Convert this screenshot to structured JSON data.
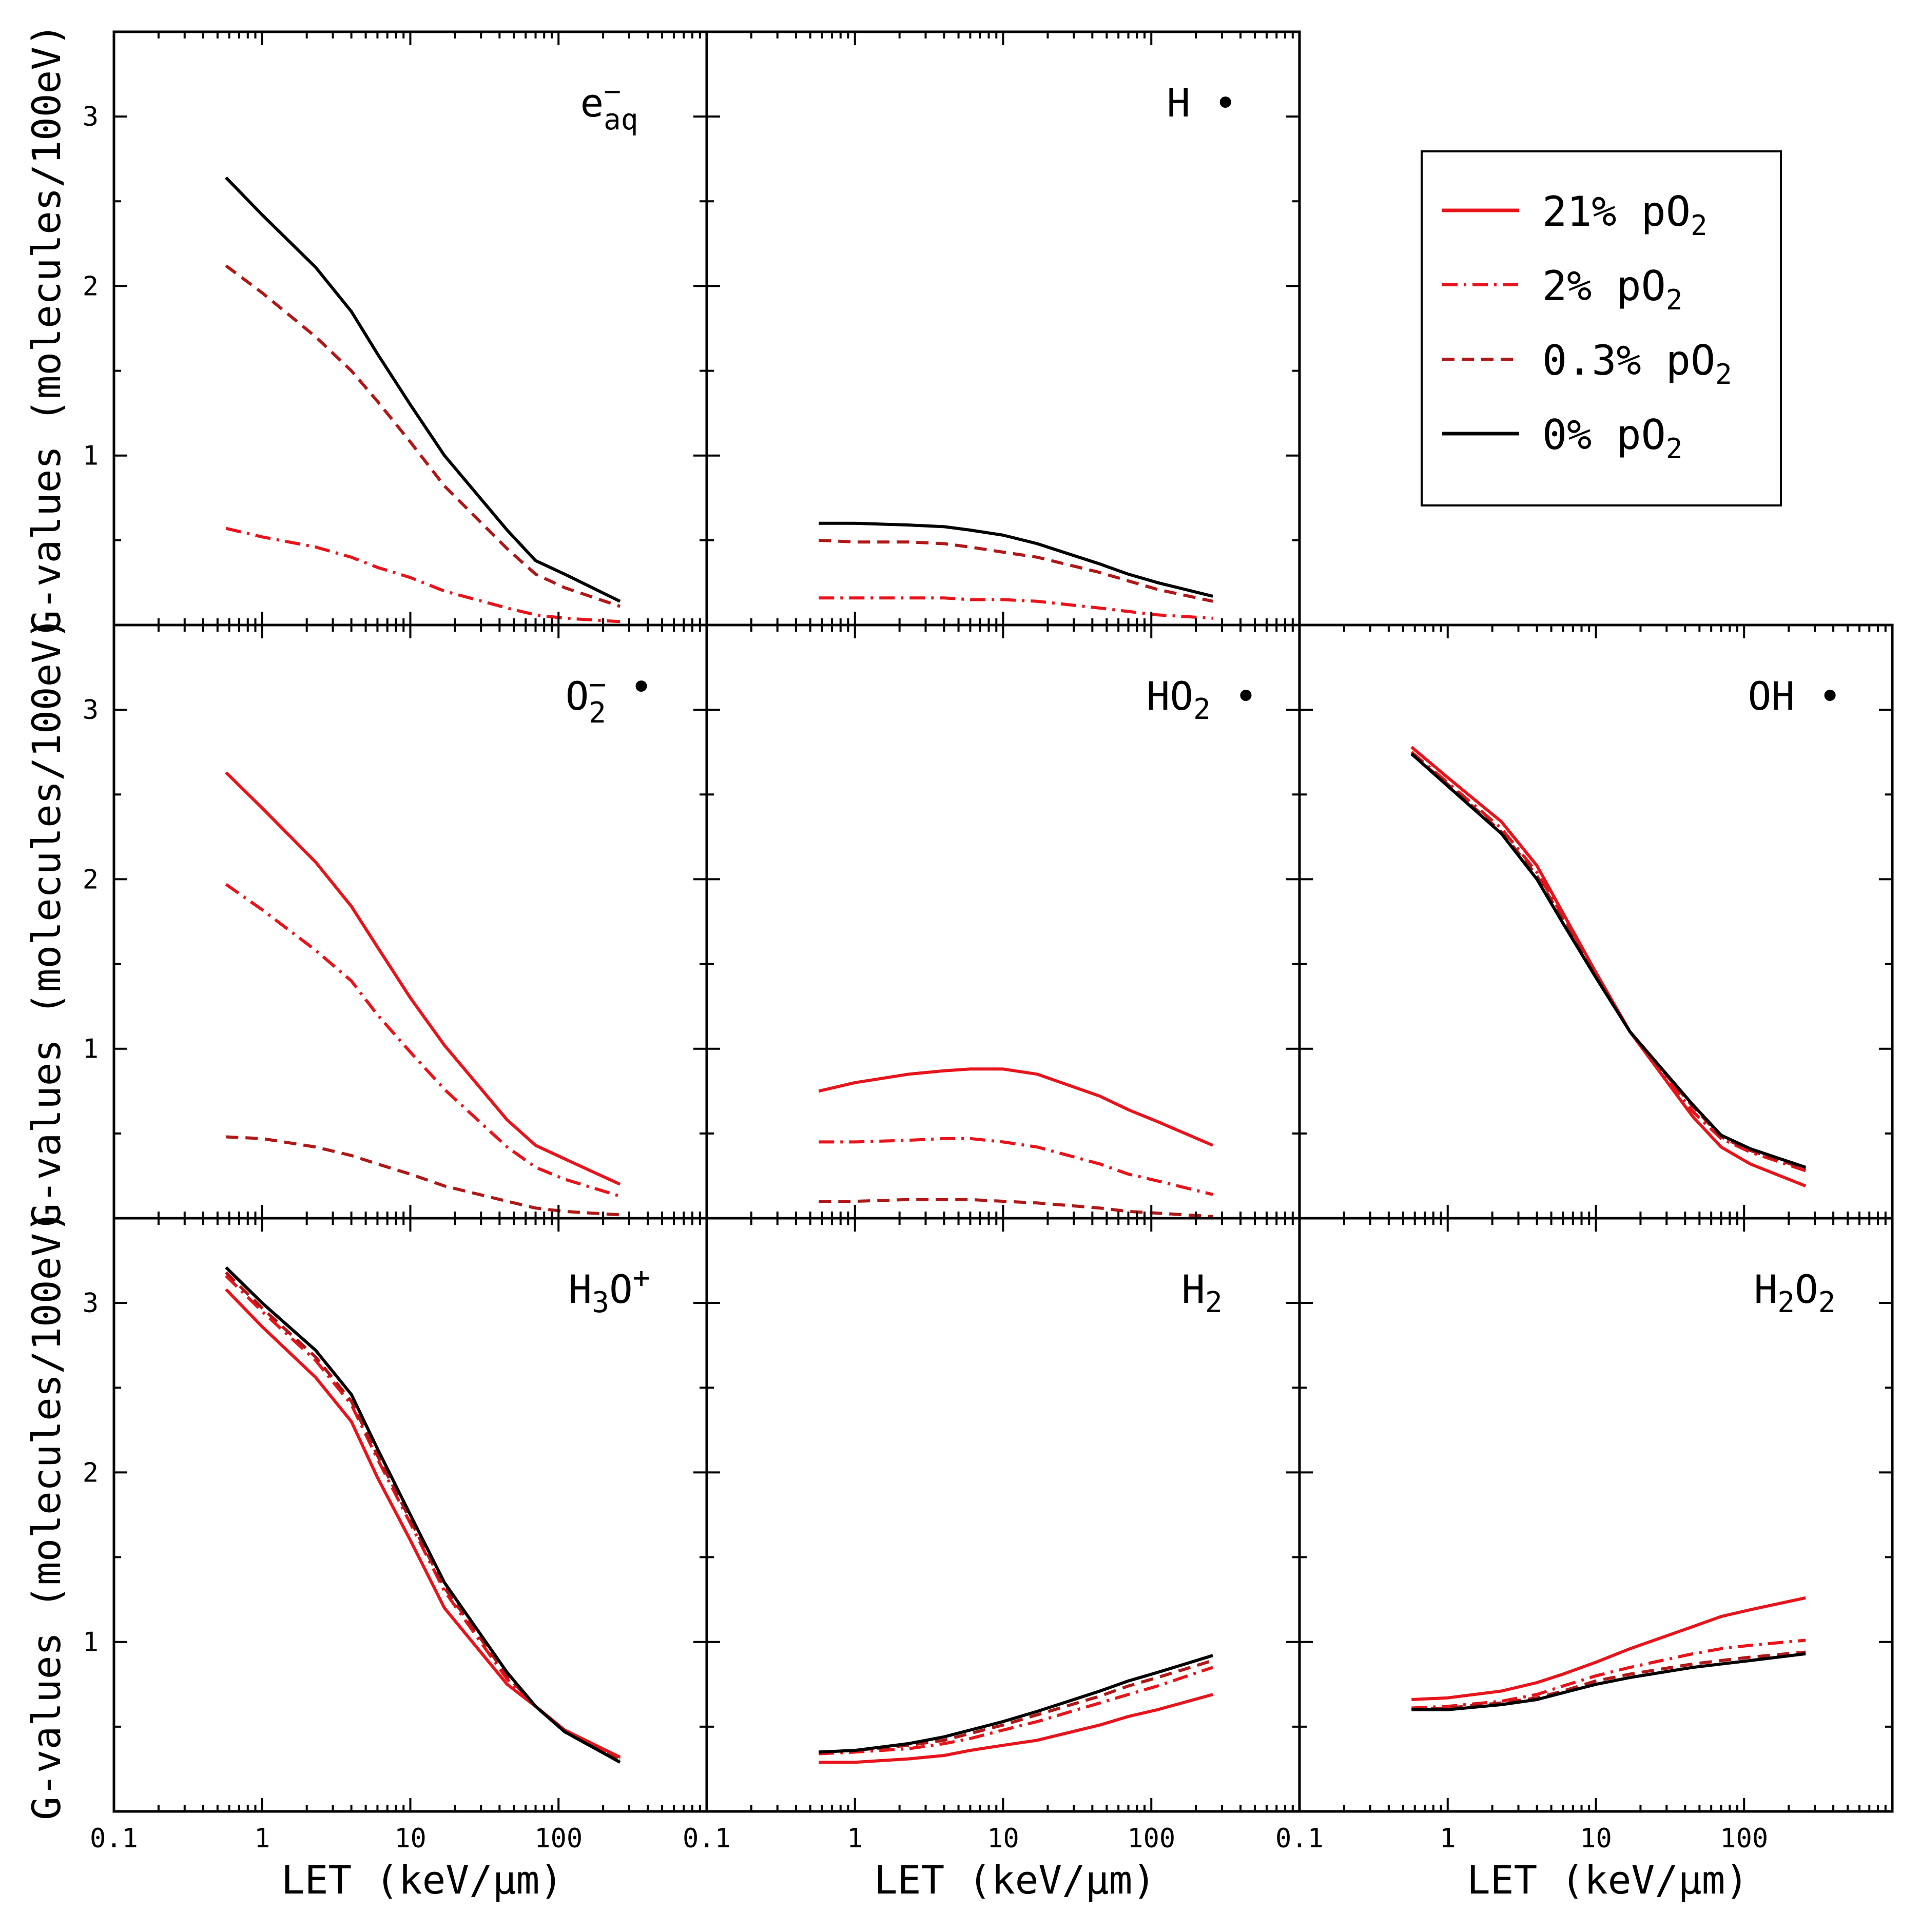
{
  "figure": {
    "x_axis_label": "LET (keV/µm)",
    "y_axis_label": "G-values (molecules/100eV)",
    "x_scale": "log",
    "xlim": [
      0.1,
      1000
    ],
    "ylim": [
      0,
      3.5
    ],
    "x_tick_labels": [
      "0.1",
      "1",
      "10",
      "100"
    ],
    "y_tick_labels": [
      "1",
      "2",
      "3"
    ]
  },
  "legend": {
    "placement": "top-right",
    "entries": [
      {
        "label": "21% pO",
        "subscript": "2",
        "color": "#e8141c",
        "dash": "solid"
      },
      {
        "label": "2% pO",
        "subscript": "2",
        "color": "#e8141c",
        "dash": "dashdot"
      },
      {
        "label": "0.3% pO",
        "subscript": "2",
        "color": "#b01818",
        "dash": "dashed"
      },
      {
        "label": "0% pO",
        "subscript": "2",
        "color": "#000000",
        "dash": "solid"
      }
    ]
  },
  "chart_data": [
    {
      "type": "line",
      "panel": "e-aq",
      "species": {
        "base": "e",
        "sup": "−",
        "sub": "aq"
      },
      "xlabel": "",
      "ylabel": "G-values (molecules/100eV)",
      "ylim": [
        0,
        3.5
      ],
      "series": [
        {
          "name": "0% pO2",
          "x": [
            0.57,
            1,
            2.3,
            4,
            6,
            10,
            17,
            45,
            70,
            110,
            260
          ],
          "y": [
            2.64,
            2.42,
            2.11,
            1.85,
            1.6,
            1.3,
            1.0,
            0.56,
            0.38,
            0.3,
            0.14
          ]
        },
        {
          "name": "0.3% pO2",
          "x": [
            0.57,
            1,
            2.3,
            4,
            6,
            10,
            17,
            45,
            70,
            110,
            260
          ],
          "y": [
            2.12,
            1.96,
            1.7,
            1.5,
            1.32,
            1.08,
            0.82,
            0.45,
            0.3,
            0.22,
            0.11
          ]
        },
        {
          "name": "2% pO2",
          "x": [
            0.57,
            1,
            2.3,
            4,
            6,
            10,
            17,
            45,
            70,
            110,
            260
          ],
          "y": [
            0.57,
            0.52,
            0.46,
            0.4,
            0.34,
            0.28,
            0.2,
            0.1,
            0.06,
            0.04,
            0.02
          ]
        }
      ]
    },
    {
      "type": "line",
      "panel": "H",
      "species": {
        "base": "H",
        "sup": "",
        "sub": "",
        "dot": "•"
      },
      "xlabel": "",
      "ylabel": "",
      "ylim": [
        0,
        3.5
      ],
      "series": [
        {
          "name": "0% pO2",
          "x": [
            0.57,
            1,
            2.3,
            4,
            6,
            10,
            17,
            45,
            70,
            110,
            260
          ],
          "y": [
            0.6,
            0.6,
            0.59,
            0.58,
            0.56,
            0.53,
            0.48,
            0.36,
            0.3,
            0.25,
            0.17
          ]
        },
        {
          "name": "0.3% pO2",
          "x": [
            0.57,
            1,
            2.3,
            4,
            6,
            10,
            17,
            45,
            70,
            110,
            260
          ],
          "y": [
            0.5,
            0.49,
            0.49,
            0.48,
            0.46,
            0.43,
            0.4,
            0.31,
            0.26,
            0.21,
            0.14
          ]
        },
        {
          "name": "2% pO2",
          "x": [
            0.57,
            1,
            2.3,
            4,
            6,
            10,
            17,
            45,
            70,
            110,
            260
          ],
          "y": [
            0.16,
            0.16,
            0.16,
            0.16,
            0.15,
            0.15,
            0.14,
            0.1,
            0.08,
            0.06,
            0.04
          ]
        }
      ]
    },
    {
      "type": "line",
      "panel": "O2-",
      "species": {
        "base": "O",
        "sup": "−",
        "sub": "2",
        "dot": "•"
      },
      "xlabel": "",
      "ylabel": "G-values (molecules/100eV)",
      "ylim": [
        0,
        3.5
      ],
      "series": [
        {
          "name": "21% pO2",
          "x": [
            0.57,
            1,
            2.3,
            4,
            6,
            10,
            17,
            45,
            70,
            110,
            260
          ],
          "y": [
            2.63,
            2.42,
            2.1,
            1.84,
            1.6,
            1.3,
            1.02,
            0.58,
            0.43,
            0.35,
            0.2
          ]
        },
        {
          "name": "2% pO2",
          "x": [
            0.57,
            1,
            2.3,
            4,
            6,
            10,
            17,
            45,
            70,
            110,
            260
          ],
          "y": [
            1.97,
            1.82,
            1.58,
            1.4,
            1.2,
            0.98,
            0.76,
            0.42,
            0.3,
            0.23,
            0.13
          ]
        },
        {
          "name": "0.3% pO2",
          "x": [
            0.57,
            1,
            2.3,
            4,
            6,
            10,
            17,
            45,
            70,
            110,
            260
          ],
          "y": [
            0.48,
            0.47,
            0.42,
            0.37,
            0.32,
            0.26,
            0.19,
            0.1,
            0.06,
            0.04,
            0.02
          ]
        }
      ]
    },
    {
      "type": "line",
      "panel": "HO2",
      "species": {
        "base": "HO",
        "sup": "",
        "sub": "2",
        "dot": "•"
      },
      "xlabel": "",
      "ylabel": "",
      "ylim": [
        0,
        3.5
      ],
      "series": [
        {
          "name": "21% pO2",
          "x": [
            0.57,
            1,
            2.3,
            4,
            6,
            10,
            17,
            45,
            70,
            110,
            260
          ],
          "y": [
            0.75,
            0.8,
            0.85,
            0.87,
            0.88,
            0.88,
            0.85,
            0.72,
            0.64,
            0.57,
            0.43
          ]
        },
        {
          "name": "2% pO2",
          "x": [
            0.57,
            1,
            2.3,
            4,
            6,
            10,
            17,
            45,
            70,
            110,
            260
          ],
          "y": [
            0.45,
            0.45,
            0.46,
            0.47,
            0.47,
            0.45,
            0.42,
            0.32,
            0.26,
            0.22,
            0.14
          ]
        },
        {
          "name": "0.3% pO2",
          "x": [
            0.57,
            1,
            2.3,
            4,
            6,
            10,
            17,
            45,
            70,
            110,
            260
          ],
          "y": [
            0.1,
            0.1,
            0.11,
            0.11,
            0.11,
            0.1,
            0.09,
            0.06,
            0.04,
            0.03,
            0.01
          ]
        }
      ]
    },
    {
      "type": "line",
      "panel": "OH",
      "species": {
        "base": "OH",
        "sup": "",
        "sub": "",
        "dot": "•"
      },
      "xlabel": "",
      "ylabel": "",
      "ylim": [
        0,
        3.5
      ],
      "series": [
        {
          "name": "21% pO2",
          "x": [
            0.57,
            1,
            2.3,
            4,
            6,
            10,
            17,
            45,
            70,
            110,
            260
          ],
          "y": [
            2.78,
            2.6,
            2.34,
            2.08,
            1.8,
            1.45,
            1.1,
            0.6,
            0.42,
            0.32,
            0.19
          ]
        },
        {
          "name": "2% pO2",
          "x": [
            0.57,
            1,
            2.3,
            4,
            6,
            10,
            17,
            45,
            70,
            110,
            260
          ],
          "y": [
            2.75,
            2.57,
            2.3,
            2.04,
            1.78,
            1.45,
            1.1,
            0.63,
            0.47,
            0.39,
            0.28
          ]
        },
        {
          "name": "0.3% pO2",
          "x": [
            0.57,
            1,
            2.3,
            4,
            6,
            10,
            17,
            45,
            70,
            110,
            260
          ],
          "y": [
            2.74,
            2.56,
            2.28,
            2.02,
            1.76,
            1.43,
            1.1,
            0.66,
            0.48,
            0.4,
            0.29
          ]
        },
        {
          "name": "0% pO2",
          "x": [
            0.57,
            1,
            2.3,
            4,
            6,
            10,
            17,
            45,
            70,
            110,
            260
          ],
          "y": [
            2.74,
            2.55,
            2.27,
            2.0,
            1.74,
            1.42,
            1.1,
            0.67,
            0.49,
            0.41,
            0.3
          ]
        }
      ]
    },
    {
      "type": "line",
      "panel": "H3O+",
      "species": {
        "base": "H",
        "sub": "3",
        "base2": "O",
        "sup": "+"
      },
      "xlabel": "LET (keV/µm)",
      "ylabel": "G-values (molecules/100eV)",
      "ylim": [
        0,
        3.5
      ],
      "series": [
        {
          "name": "21% pO2",
          "x": [
            0.57,
            1,
            2.3,
            4,
            6,
            10,
            17,
            45,
            70,
            110,
            260
          ],
          "y": [
            3.08,
            2.86,
            2.56,
            2.3,
            1.97,
            1.6,
            1.2,
            0.75,
            0.62,
            0.48,
            0.32
          ]
        },
        {
          "name": "2% pO2",
          "x": [
            0.57,
            1,
            2.3,
            4,
            6,
            10,
            17,
            45,
            70,
            110,
            260
          ],
          "y": [
            3.16,
            2.95,
            2.66,
            2.4,
            2.08,
            1.7,
            1.3,
            0.78,
            0.62,
            0.47,
            0.31
          ]
        },
        {
          "name": "0.3% pO2",
          "x": [
            0.57,
            1,
            2.3,
            4,
            6,
            10,
            17,
            45,
            70,
            110,
            260
          ],
          "y": [
            3.18,
            2.97,
            2.68,
            2.42,
            2.1,
            1.72,
            1.32,
            0.8,
            0.62,
            0.47,
            0.3
          ]
        },
        {
          "name": "0% pO2",
          "x": [
            0.57,
            1,
            2.3,
            4,
            6,
            10,
            17,
            45,
            70,
            110,
            260
          ],
          "y": [
            3.21,
            3.0,
            2.72,
            2.46,
            2.14,
            1.75,
            1.35,
            0.82,
            0.62,
            0.47,
            0.29
          ]
        }
      ]
    },
    {
      "type": "line",
      "panel": "H2",
      "species": {
        "base": "H",
        "sub": "2"
      },
      "xlabel": "LET (keV/µm)",
      "ylabel": "",
      "ylim": [
        0,
        3.5
      ],
      "series": [
        {
          "name": "21% pO2",
          "x": [
            0.57,
            1,
            2.3,
            4,
            6,
            10,
            17,
            45,
            70,
            110,
            260
          ],
          "y": [
            0.29,
            0.29,
            0.31,
            0.33,
            0.36,
            0.39,
            0.42,
            0.51,
            0.56,
            0.6,
            0.69
          ]
        },
        {
          "name": "2% pO2",
          "x": [
            0.57,
            1,
            2.3,
            4,
            6,
            10,
            17,
            45,
            70,
            110,
            260
          ],
          "y": [
            0.34,
            0.35,
            0.37,
            0.4,
            0.43,
            0.48,
            0.53,
            0.64,
            0.69,
            0.74,
            0.85
          ]
        },
        {
          "name": "0.3% pO2",
          "x": [
            0.57,
            1,
            2.3,
            4,
            6,
            10,
            17,
            45,
            70,
            110,
            260
          ],
          "y": [
            0.35,
            0.36,
            0.39,
            0.42,
            0.46,
            0.51,
            0.57,
            0.68,
            0.74,
            0.79,
            0.89
          ]
        },
        {
          "name": "0% pO2",
          "x": [
            0.57,
            1,
            2.3,
            4,
            6,
            10,
            17,
            45,
            70,
            110,
            260
          ],
          "y": [
            0.35,
            0.36,
            0.4,
            0.44,
            0.48,
            0.53,
            0.59,
            0.71,
            0.77,
            0.82,
            0.92
          ]
        }
      ]
    },
    {
      "type": "line",
      "panel": "H2O2",
      "species": {
        "base": "H",
        "sub": "2",
        "base2": "O",
        "sub2": "2"
      },
      "xlabel": "LET (keV/µm)",
      "ylabel": "",
      "ylim": [
        0,
        3.5
      ],
      "series": [
        {
          "name": "21% pO2",
          "x": [
            0.57,
            1,
            2.3,
            4,
            6,
            10,
            17,
            45,
            70,
            110,
            260
          ],
          "y": [
            0.66,
            0.67,
            0.71,
            0.76,
            0.81,
            0.88,
            0.96,
            1.09,
            1.15,
            1.19,
            1.26
          ]
        },
        {
          "name": "2% pO2",
          "x": [
            0.57,
            1,
            2.3,
            4,
            6,
            10,
            17,
            45,
            70,
            110,
            260
          ],
          "y": [
            0.61,
            0.62,
            0.65,
            0.69,
            0.74,
            0.8,
            0.85,
            0.93,
            0.96,
            0.98,
            1.01
          ]
        },
        {
          "name": "0.3% pO2",
          "x": [
            0.57,
            1,
            2.3,
            4,
            6,
            10,
            17,
            45,
            70,
            110,
            260
          ],
          "y": [
            0.6,
            0.61,
            0.64,
            0.67,
            0.71,
            0.77,
            0.81,
            0.87,
            0.89,
            0.91,
            0.94
          ]
        },
        {
          "name": "0% pO2",
          "x": [
            0.57,
            1,
            2.3,
            4,
            6,
            10,
            17,
            45,
            70,
            110,
            260
          ],
          "y": [
            0.6,
            0.6,
            0.63,
            0.66,
            0.7,
            0.75,
            0.79,
            0.85,
            0.87,
            0.89,
            0.93
          ]
        }
      ]
    }
  ]
}
